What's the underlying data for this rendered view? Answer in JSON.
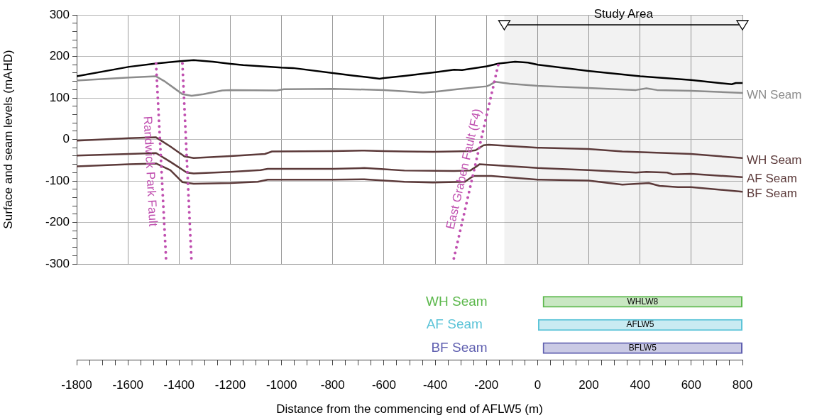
{
  "chart_data": [
    {
      "type": "line",
      "ylabel": "Surface and seam levels (mAHD)",
      "xlim": [
        -1800,
        800
      ],
      "xticks": [
        -1800,
        -1600,
        -1400,
        -1200,
        -1000,
        -800,
        -600,
        -400,
        -200,
        0,
        200,
        400,
        600,
        800
      ],
      "ylim": [
        -300,
        300
      ],
      "yticks": [
        -300,
        {
          "value": -280,
          "label": null
        },
        {
          "value": -260,
          "label": null
        },
        {
          "value": -240,
          "label": null
        },
        {
          "value": -220,
          "label": null
        },
        -200,
        {
          "value": -180,
          "label": null
        },
        {
          "value": -160,
          "label": null
        },
        {
          "value": -140,
          "label": null
        },
        {
          "value": -120,
          "label": null
        },
        -100,
        {
          "value": -80,
          "label": null
        },
        {
          "value": -60,
          "label": null
        },
        {
          "value": -40,
          "label": null
        },
        {
          "value": -20,
          "label": null
        },
        0,
        {
          "value": 20,
          "label": null
        },
        {
          "value": 40,
          "label": null
        },
        {
          "value": 60,
          "label": null
        },
        {
          "value": 80,
          "label": null
        },
        100,
        {
          "value": 120,
          "label": null
        },
        {
          "value": 140,
          "label": null
        },
        {
          "value": 160,
          "label": null
        },
        {
          "value": 180,
          "label": null
        },
        200,
        {
          "value": 220,
          "label": null
        },
        {
          "value": 240,
          "label": null
        },
        {
          "value": 260,
          "label": null
        },
        {
          "value": 280,
          "label": null
        },
        300
      ],
      "tick_labels": "y",
      "grid": true,
      "bands": [
        {
          "axis": "x",
          "from": -130,
          "to": 800,
          "label": "Study Area",
          "color": "#000000"
        }
      ],
      "series": [
        {
          "color": "#000000",
          "x": [
            -1800,
            -1595,
            -1490,
            -1387,
            -1343,
            -1268,
            -1199,
            -1149,
            -1001,
            -955,
            -799,
            -722,
            -666,
            -617,
            -600,
            -520,
            -398,
            -326,
            -295,
            -199,
            -151,
            -88,
            -37,
            1,
            198,
            401,
            599,
            758,
            774,
            800
          ],
          "values": [
            152,
            175,
            183,
            189,
            191,
            187,
            182,
            179,
            173,
            172,
            160,
            154,
            150,
            146,
            148,
            153,
            162,
            168,
            167,
            176,
            183,
            187,
            185,
            180,
            165,
            152,
            143,
            133,
            136,
            136
          ]
        },
        {
          "name": "WN Seam",
          "color": "#8c8c8c",
          "x": [
            -1800,
            -1595,
            -1490,
            -1454,
            -1416,
            -1387,
            -1351,
            -1305,
            -1231,
            -1199,
            -1018,
            -991,
            -799,
            -600,
            -520,
            -447,
            -398,
            -314,
            -199,
            -187,
            -165,
            -109,
            1,
            198,
            384,
            425,
            466,
            599,
            800
          ],
          "values": [
            142,
            149,
            152,
            139,
            122,
            109,
            105,
            109,
            118,
            119,
            118,
            121,
            122,
            119,
            116,
            113,
            115,
            121,
            128,
            131,
            139,
            134,
            129,
            124,
            119,
            123,
            119,
            117,
            112
          ]
        },
        {
          "name": "WH Seam",
          "color": "#5c3a3a",
          "x": [
            -1800,
            -1595,
            -1490,
            -1434,
            -1379,
            -1343,
            -1199,
            -1065,
            -1037,
            -799,
            -677,
            -600,
            -520,
            -409,
            -263,
            -242,
            -211,
            -191,
            1,
            198,
            331,
            599,
            800
          ],
          "values": [
            -3,
            3,
            5,
            -17,
            -41,
            -45,
            -40,
            -35,
            -29,
            -28,
            -27,
            -28,
            -29,
            -30,
            -28,
            -26,
            -14,
            -13,
            -20,
            -23,
            -29,
            -35,
            -45
          ]
        },
        {
          "name": "AF Seam",
          "color": "#5c3a3a",
          "x": [
            -1800,
            -1595,
            -1490,
            -1434,
            -1370,
            -1343,
            -1199,
            -1082,
            -1054,
            -799,
            -677,
            -600,
            -520,
            -326,
            -263,
            -248,
            -227,
            1,
            198,
            384,
            425,
            506,
            527,
            599,
            800
          ],
          "values": [
            -39,
            -35,
            -33,
            -54,
            -80,
            -82,
            -78,
            -74,
            -71,
            -71,
            -69,
            -72,
            -75,
            -76,
            -75,
            -69,
            -60,
            -69,
            -74,
            -80,
            -78,
            -80,
            -84,
            -83,
            -91
          ]
        },
        {
          "name": "BF Seam",
          "color": "#5c3a3a",
          "x": [
            -1800,
            -1595,
            -1490,
            -1434,
            -1387,
            -1343,
            -1199,
            -1093,
            -1054,
            -799,
            -677,
            -600,
            -520,
            -409,
            -284,
            -263,
            -248,
            -181,
            1,
            198,
            331,
            434,
            476,
            548,
            599,
            800
          ],
          "values": [
            -65,
            -60,
            -58,
            -74,
            -103,
            -107,
            -105,
            -102,
            -97,
            -97,
            -96,
            -99,
            -102,
            -104,
            -102,
            -93,
            -88,
            -88,
            -97,
            -99,
            -109,
            -105,
            -112,
            -115,
            -115,
            -126
          ]
        },
        {
          "name": "Randwick Park Fault",
          "type": "line",
          "line_style": "dotted",
          "color": "#c050b0",
          "x": [
            -1490,
            -1450
          ],
          "values": [
            183,
            -300
          ]
        },
        {
          "type": "line",
          "line_style": "dotted",
          "color": "#c050b0",
          "x": [
            -1387,
            -1351
          ],
          "values": [
            183,
            -300
          ]
        },
        {
          "name": "East Graben Fault (F4)",
          "type": "line",
          "line_style": "dotted",
          "color": "#c050b0",
          "x": [
            -154,
            -332
          ],
          "values": [
            179,
            -300
          ]
        }
      ]
    },
    {
      "type": "bar",
      "orientation": "horizontal",
      "xlabel": "Distance from the commencing end of AFLW5 (m)",
      "categories": [
        "WH Seam",
        "AF Seam",
        "BF Seam"
      ],
      "base": [
        20,
        0,
        20
      ],
      "values": [
        780,
        800,
        780
      ],
      "colors": [
        "#5cb84c",
        "#5cc4d8",
        "#6060b0"
      ],
      "value_labels": [
        "WHLW8",
        "AFLW5",
        "BFLW5"
      ],
      "xlim": [
        -1800,
        800
      ],
      "xticks": [
        -1800,
        {
          "value": -1750,
          "label": null
        },
        {
          "value": -1700,
          "label": null
        },
        {
          "value": -1650,
          "label": null
        },
        -1600,
        {
          "value": -1550,
          "label": null
        },
        {
          "value": -1500,
          "label": null
        },
        {
          "value": -1450,
          "label": null
        },
        -1400,
        {
          "value": -1350,
          "label": null
        },
        {
          "value": -1300,
          "label": null
        },
        {
          "value": -1250,
          "label": null
        },
        -1200,
        {
          "value": -1150,
          "label": null
        },
        {
          "value": -1100,
          "label": null
        },
        {
          "value": -1050,
          "label": null
        },
        -1000,
        {
          "value": -950,
          "label": null
        },
        {
          "value": -900,
          "label": null
        },
        {
          "value": -850,
          "label": null
        },
        -800,
        {
          "value": -750,
          "label": null
        },
        {
          "value": -700,
          "label": null
        },
        {
          "value": -650,
          "label": null
        },
        -600,
        {
          "value": -550,
          "label": null
        },
        {
          "value": -500,
          "label": null
        },
        {
          "value": -450,
          "label": null
        },
        -400,
        {
          "value": -350,
          "label": null
        },
        {
          "value": -300,
          "label": null
        },
        {
          "value": -250,
          "label": null
        },
        -200,
        {
          "value": -150,
          "label": null
        },
        {
          "value": -100,
          "label": null
        },
        {
          "value": -50,
          "label": null
        },
        0,
        {
          "value": 50,
          "label": null
        },
        {
          "value": 100,
          "label": null
        },
        {
          "value": 150,
          "label": null
        },
        200,
        {
          "value": 250,
          "label": null
        },
        {
          "value": 300,
          "label": null
        },
        {
          "value": 350,
          "label": null
        },
        400,
        {
          "value": 450,
          "label": null
        },
        {
          "value": 500,
          "label": null
        },
        {
          "value": 550,
          "label": null
        },
        600,
        {
          "value": 650,
          "label": null
        },
        {
          "value": 700,
          "label": null
        },
        {
          "value": 750,
          "label": null
        },
        800
      ]
    }
  ]
}
